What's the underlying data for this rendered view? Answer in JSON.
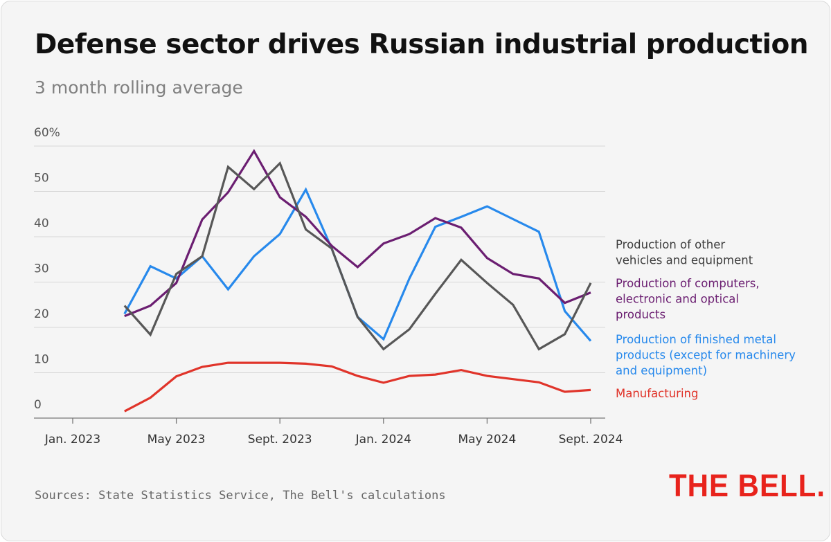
{
  "title": "Defense sector drives Russian industrial production",
  "subtitle": "3 month rolling average",
  "source": "Sources: State Statistics Service, The Bell's calculations",
  "logo": "THE BELL.",
  "chart_data": {
    "type": "line",
    "x": [
      "2023-03",
      "2023-04",
      "2023-05",
      "2023-06",
      "2023-07",
      "2023-08",
      "2023-09",
      "2023-10",
      "2023-11",
      "2023-12",
      "2024-01",
      "2024-02",
      "2024-03",
      "2024-04",
      "2024-05",
      "2024-06",
      "2024-07",
      "2024-08",
      "2024-09"
    ],
    "x_ticks": [
      {
        "date": "2023-01",
        "label": "Jan. 2023"
      },
      {
        "date": "2023-05",
        "label": "May 2023"
      },
      {
        "date": "2023-09",
        "label": "Sept. 2023"
      },
      {
        "date": "2024-01",
        "label": "Jan. 2024"
      },
      {
        "date": "2024-05",
        "label": "May 2024"
      },
      {
        "date": "2024-09",
        "label": "Sept. 2024"
      }
    ],
    "xlim": [
      "2023-01",
      "2024-09"
    ],
    "y_ticks": [
      {
        "value": 0,
        "label": "0"
      },
      {
        "value": 10,
        "label": "10"
      },
      {
        "value": 20,
        "label": "20"
      },
      {
        "value": 30,
        "label": "30"
      },
      {
        "value": 40,
        "label": "40"
      },
      {
        "value": 50,
        "label": "50"
      },
      {
        "value": 60,
        "label": "60%"
      }
    ],
    "ylim": [
      0,
      60
    ],
    "grid": true,
    "legend_position": "right",
    "series": [
      {
        "name": "Manufacturing",
        "label_lines": [
          "Manufacturing"
        ],
        "color": "#e0342a",
        "values": [
          1.5,
          4.5,
          9.2,
          11.3,
          12.2,
          12.2,
          12.2,
          12.0,
          11.4,
          9.3,
          7.8,
          9.3,
          9.6,
          10.6,
          9.3,
          8.6,
          7.9,
          5.8,
          6.2
        ]
      },
      {
        "name": "Production of finished metal products (except for machinery and equipment)",
        "label_lines": [
          "Production of finished metal",
          "products (except for machinery",
          "and equipment)"
        ],
        "color": "#2789ec",
        "values": [
          23.0,
          33.5,
          30.8,
          35.7,
          28.4,
          35.7,
          40.6,
          50.4,
          37.4,
          22.3,
          17.4,
          30.8,
          42.2,
          44.4,
          46.7,
          43.9,
          41.1,
          23.6,
          17.0
        ]
      },
      {
        "name": "Production of computers, electronic and optical products",
        "label_lines": [
          "Production of computers,",
          "electronic and optical",
          "products"
        ],
        "color": "#6b1e71",
        "values": [
          22.5,
          24.8,
          29.8,
          43.8,
          49.8,
          58.9,
          48.7,
          44.4,
          38.0,
          33.3,
          38.5,
          40.6,
          44.1,
          42.0,
          35.3,
          31.8,
          30.8,
          25.4,
          27.7
        ]
      },
      {
        "name": "Production of other vehicles and equipment",
        "label_lines": [
          "Production of other",
          "vehicles and equipment"
        ],
        "color": "#575757",
        "values": [
          24.8,
          18.4,
          31.8,
          35.7,
          55.4,
          50.5,
          56.2,
          41.6,
          37.4,
          22.3,
          15.2,
          19.6,
          27.4,
          34.9,
          29.8,
          25.0,
          15.2,
          18.5,
          29.8
        ]
      }
    ]
  }
}
